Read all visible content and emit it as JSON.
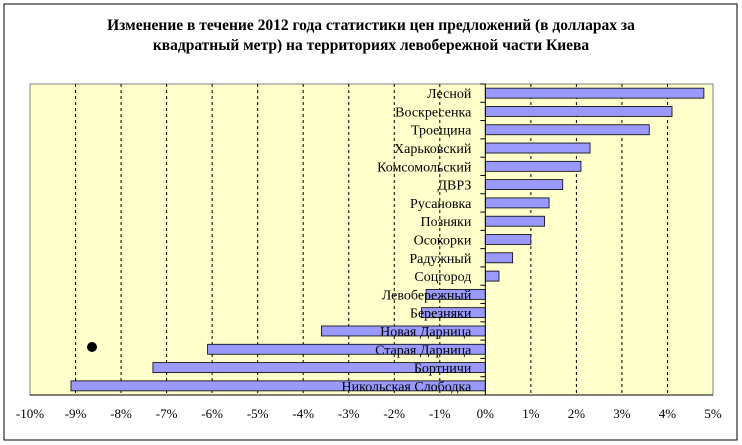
{
  "chart_data": {
    "type": "bar",
    "orientation": "horizontal",
    "title_lines": [
      "Изменение в течение 2012 года статистики цен предложений (в долларах за",
      "квадратный метр) на территориях левобережной части Киева"
    ],
    "categories": [
      "Лесной",
      "Воскресенка",
      "Троещина",
      "Харьковский",
      "Комсомольский",
      "ДВРЗ",
      "Русановка",
      "Позняки",
      "Осокорки",
      "Радужный",
      "Соцгород",
      "Левобережный",
      "Березняки",
      "Новая Дарница",
      "Старая Дарница",
      "Бортничи",
      "Никольская Слободка"
    ],
    "values": [
      4.8,
      4.1,
      3.6,
      2.3,
      2.1,
      1.7,
      1.4,
      1.3,
      1.0,
      0.6,
      0.3,
      -1.3,
      -1.4,
      -3.6,
      -6.1,
      -7.3,
      -9.1
    ],
    "xlim": [
      -10,
      5
    ],
    "xticks": [
      "-10%",
      "-9%",
      "-8%",
      "-7%",
      "-6%",
      "-5%",
      "-4%",
      "-3%",
      "-2%",
      "-1%",
      "0%",
      "1%",
      "2%",
      "3%",
      "4%",
      "5%"
    ],
    "grid": "vertical dashed",
    "colors": {
      "bar": "#9999FF",
      "plot_bg": "#FFFFCC"
    }
  }
}
